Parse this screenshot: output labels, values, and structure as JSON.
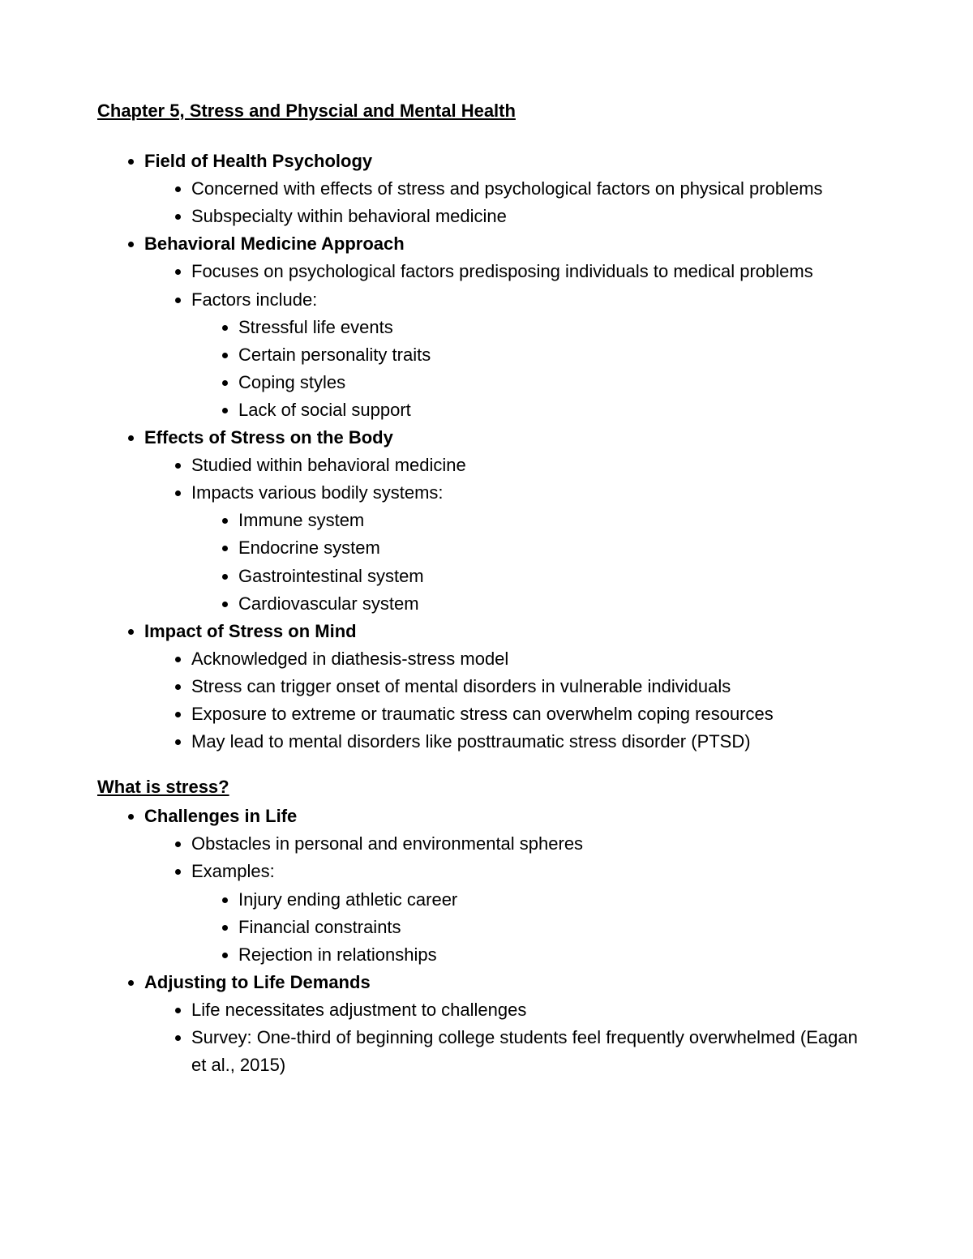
{
  "title": "Chapter 5, Stress and Physcial and Mental Health",
  "sections": [
    {
      "heading": "Field of Health Psychology",
      "items": [
        {
          "text": "Concerned with effects of stress and psychological factors on physical problems"
        },
        {
          "text": "Subspecialty within behavioral medicine"
        }
      ]
    },
    {
      "heading": "Behavioral Medicine Approach",
      "items": [
        {
          "text": "Focuses on psychological factors predisposing individuals to medical problems"
        },
        {
          "text": "Factors include:",
          "children": [
            {
              "text": "Stressful life events"
            },
            {
              "text": "Certain personality traits"
            },
            {
              "text": "Coping styles"
            },
            {
              "text": "Lack of social support"
            }
          ]
        }
      ]
    },
    {
      "heading": "Effects of Stress on the Body",
      "items": [
        {
          "text": "Studied within behavioral medicine"
        },
        {
          "text": "Impacts various bodily systems:",
          "children": [
            {
              "text": "Immune system"
            },
            {
              "text": "Endocrine system"
            },
            {
              "text": "Gastrointestinal system"
            },
            {
              "text": "Cardiovascular system"
            }
          ]
        }
      ]
    },
    {
      "heading": "Impact of Stress on Mind",
      "items": [
        {
          "text": "Acknowledged in diathesis-stress model"
        },
        {
          "text": "Stress can trigger onset of mental disorders in vulnerable individuals"
        },
        {
          "text": "Exposure to extreme or traumatic stress can overwhelm coping resources"
        },
        {
          "text": "May lead to mental disorders like posttraumatic stress disorder (PTSD)"
        }
      ]
    }
  ],
  "subheading": "What is stress?",
  "sections2": [
    {
      "heading": "Challenges in Life",
      "items": [
        {
          "text": "Obstacles in personal and environmental spheres"
        },
        {
          "text": "Examples:",
          "children": [
            {
              "text": "Injury ending athletic career"
            },
            {
              "text": "Financial constraints"
            },
            {
              "text": "Rejection in relationships"
            }
          ]
        }
      ]
    },
    {
      "heading": "Adjusting to Life Demands",
      "items": [
        {
          "text": "Life necessitates adjustment to challenges"
        },
        {
          "text": "Survey: One-third of beginning college students feel frequently overwhelmed (Eagan et al., 2015)"
        }
      ]
    }
  ]
}
